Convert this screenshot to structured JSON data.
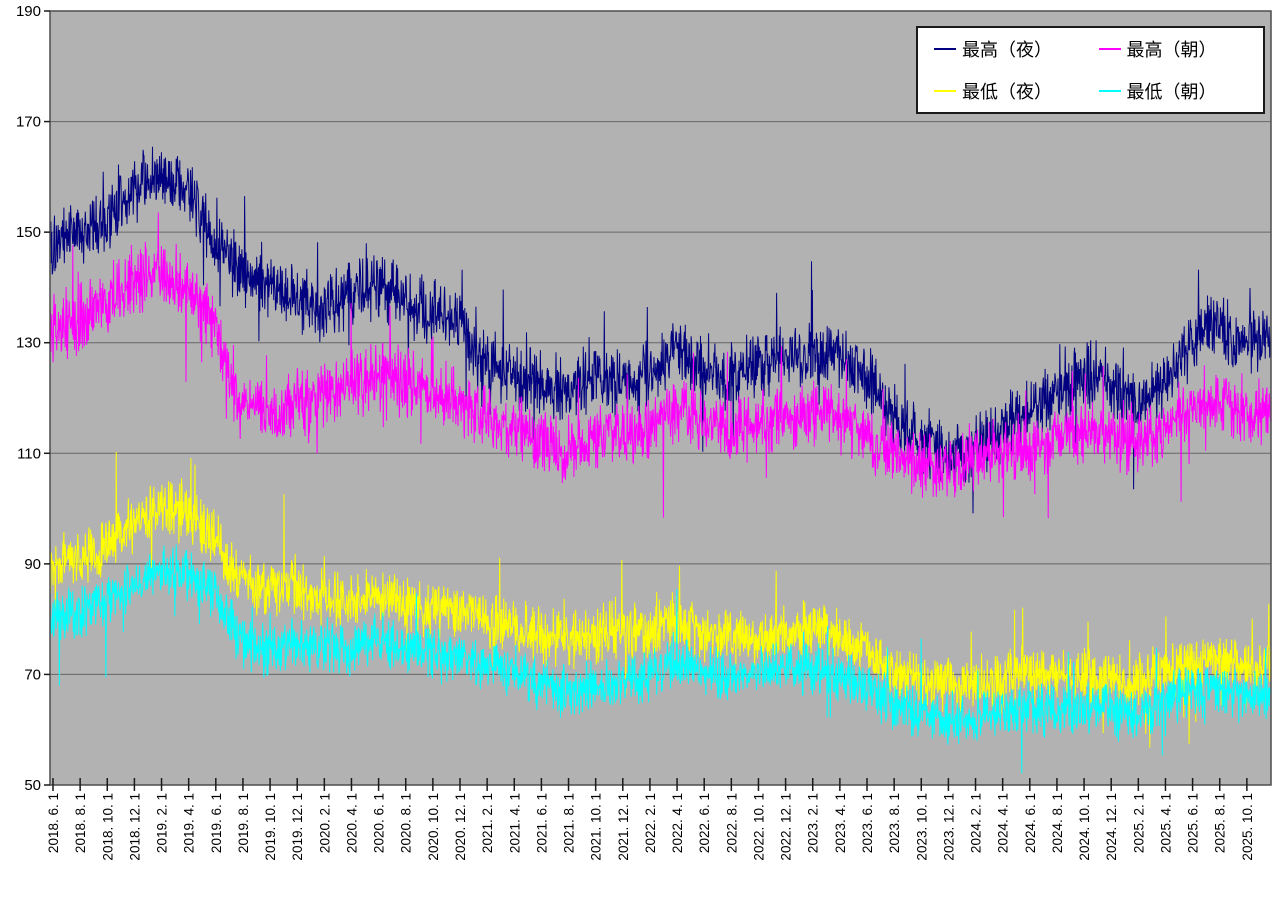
{
  "chart_data": {
    "type": "line",
    "title": "",
    "description_visible_on_screen": "",
    "ylabel": "",
    "xlabel": "",
    "ylim": [
      50,
      190
    ],
    "y_ticks": [
      190,
      170,
      150,
      130,
      110,
      90,
      70,
      50
    ],
    "grid": "horizontal",
    "legend_position": "top-right",
    "plot_bg_color": "#b2b2b2",
    "grid_color": "#666666",
    "border_color": "#4d4d4d",
    "tick_color": "#1a1a1a",
    "axis_text_color": "#000000",
    "x_tick_labels": [
      "2018. 6. 1",
      "2018. 8. 1",
      "2018. 10. 1",
      "2018. 12. 1",
      "2019. 2. 1",
      "2019. 4. 1",
      "2019. 6. 1",
      "2019. 8. 1",
      "2019. 10. 1",
      "2019. 12. 1",
      "2020. 2. 1",
      "2020. 4. 1",
      "2020. 6. 1",
      "2020. 8. 1",
      "2020. 10. 1",
      "2020. 12. 1",
      "2021. 2. 1",
      "2021. 4. 1",
      "2021. 6. 1",
      "2021. 8. 1",
      "2021. 10. 1",
      "2021. 12. 1",
      "2022. 2. 1",
      "2022. 4. 1",
      "2022. 6. 1",
      "2022. 8. 1",
      "2022. 10. 1",
      "2022. 12. 1",
      "2023. 2. 1",
      "2023. 4. 1",
      "2023. 6. 1",
      "2023. 8. 1",
      "2023. 10. 1",
      "2023. 12. 1",
      "2024. 2. 1",
      "2024. 4. 1",
      "2024. 6. 1",
      "2024. 8. 1",
      "2024. 10. 1",
      "2024. 12. 1",
      "2025. 2. 1",
      "2025. 4. 1",
      "2025. 6. 1",
      "2025. 8. 1",
      "2025. 10. 1"
    ],
    "x_axis_note": "daily readings; tick labels every 2 months from 2018.6.1 to 2025.10.1",
    "series": [
      {
        "name": "最高（夜）",
        "color": "#000080",
        "daily_noise_amp": 7,
        "trend_anchor_values_bimonthly": [
          148,
          150,
          152,
          158,
          160,
          158,
          149,
          143,
          140,
          138,
          136,
          138,
          140,
          138,
          136,
          134,
          126,
          124,
          123,
          121,
          124,
          122,
          124,
          128,
          126,
          124,
          126,
          127,
          128,
          128,
          124,
          118,
          112,
          110,
          110,
          114,
          117,
          120,
          124,
          124,
          118,
          122,
          130,
          134,
          129,
          131
        ]
      },
      {
        "name": "最高（朝）",
        "color": "#ff00ff",
        "daily_noise_amp": 7,
        "trend_anchor_values_bimonthly": [
          132,
          134,
          137,
          141,
          143,
          140,
          133,
          119,
          117,
          119,
          120,
          122,
          124,
          123,
          121,
          120,
          116,
          115,
          112,
          110,
          112,
          113,
          114,
          118,
          116,
          114,
          115,
          116,
          117,
          117,
          114,
          110,
          108,
          107,
          108,
          110,
          111,
          112,
          114,
          113,
          111,
          114,
          118,
          120,
          117,
          118
        ]
      },
      {
        "name": "最低（夜）",
        "color": "#ffff00",
        "daily_noise_amp": 6,
        "trend_anchor_values_bimonthly": [
          90,
          91,
          93,
          97,
          100,
          99,
          95,
          87,
          85,
          86,
          84,
          83,
          84,
          83,
          82,
          82,
          80,
          79,
          77,
          76,
          77,
          78,
          78,
          80,
          78,
          77,
          77,
          78,
          78,
          77,
          75,
          71,
          69,
          68,
          68,
          69,
          70,
          70,
          70,
          69,
          68,
          70,
          72,
          73,
          71,
          72
        ]
      },
      {
        "name": "最低（朝）",
        "color": "#00ffff",
        "daily_noise_amp": 5.5,
        "trend_anchor_values_bimonthly": [
          80,
          81,
          83,
          86,
          89,
          88,
          85,
          76,
          74,
          76,
          75,
          75,
          76,
          75,
          74,
          73,
          72,
          71,
          68,
          67,
          68,
          69,
          70,
          72,
          71,
          70,
          70,
          71,
          71,
          70,
          68,
          65,
          63,
          62,
          62,
          63,
          64,
          64,
          64,
          64,
          63,
          65,
          67,
          68,
          66,
          66
        ]
      }
    ]
  }
}
